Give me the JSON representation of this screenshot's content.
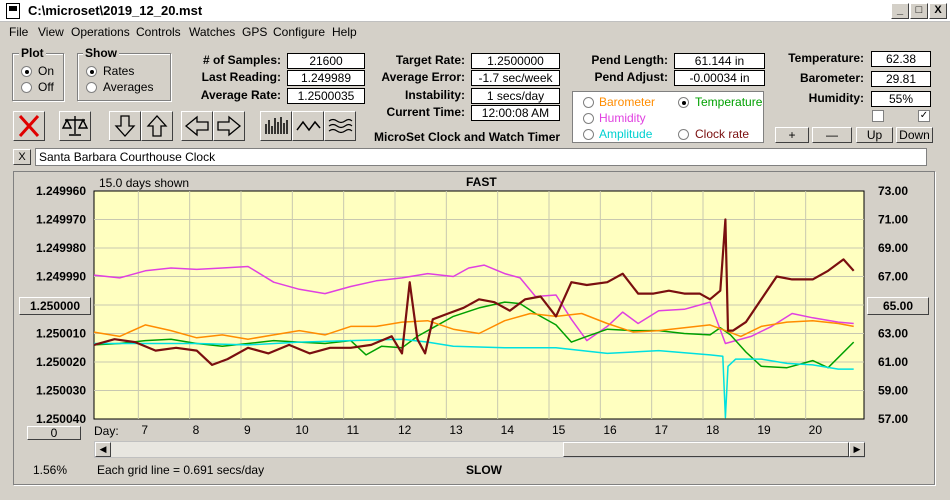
{
  "window": {
    "title": "C:\\microset\\2019_12_20.mst",
    "min": "_",
    "max": "□",
    "close": "X"
  },
  "menu": [
    "File",
    "View",
    "Operations",
    "Controls",
    "Watches",
    "GPS",
    "Configure",
    "Help"
  ],
  "plot_group": {
    "title": "Plot",
    "on": "On",
    "off": "Off"
  },
  "show_group": {
    "title": "Show",
    "rates": "Rates",
    "averages": "Averages"
  },
  "stats": {
    "samples_label": "# of Samples:",
    "samples": "21600",
    "last_label": "Last Reading:",
    "last": "1.249989",
    "avg_label": "Average Rate:",
    "avg": "1.2500035"
  },
  "targets": {
    "target_label": "Target Rate:",
    "target": "1.2500000",
    "error_label": "Average Error:",
    "error": "-1.7 sec/week",
    "instab_label": "Instability:",
    "instab": "1 secs/day",
    "time_label": "Current Time:",
    "time": "12:00:08 AM"
  },
  "app_name": "MicroSet Clock and Watch Timer",
  "pend": {
    "len_label": "Pend Length:",
    "len": "61.144 in",
    "adj_label": "Pend Adjust:",
    "adj": "-0.00034 in"
  },
  "env": {
    "temp_label": "Temperature:",
    "temp": "62.38",
    "baro_label": "Barometer:",
    "baro": "29.81",
    "hum_label": "Humidity:",
    "hum": "55%",
    "check1": "",
    "check2": "✓"
  },
  "series_select": {
    "barometer": "Barometer",
    "temperature": "Temperature",
    "humidity": "Humidity",
    "amplitude": "Amplitude",
    "clock_rate": "Clock rate"
  },
  "adjust_buttons": {
    "plus": "+",
    "minus": "—",
    "up": "Up",
    "down": "Down"
  },
  "clock_name": "Santa Barbara Courthouse Clock",
  "clear_btn": "X",
  "chart_header": {
    "days_shown": "15.0 days shown",
    "fast": "FAST",
    "slow": "SLOW"
  },
  "chart_footer": {
    "grid_note": "Each grid line = 0.691 secs/day",
    "percent": "1.56%",
    "zero_btn": "0",
    "center_left": "1.250000",
    "center_right": "65.00"
  },
  "colors": {
    "rate": "#7a0f0f",
    "temperature": "#00a000",
    "barometer": "#ff8c00",
    "humidity": "#e040e0",
    "amplitude": "#00e0e0",
    "plot_bg": "#ffffc0"
  },
  "chart_data": {
    "type": "line",
    "x_label": "Day:",
    "x_ticks": [
      "7",
      "8",
      "9",
      "10",
      "11",
      "12",
      "13",
      "14",
      "15",
      "16",
      "17",
      "18",
      "19",
      "20"
    ],
    "xlim": [
      6,
      21
    ],
    "y_left_ticks": [
      "1.249960",
      "1.249970",
      "1.249980",
      "1.249990",
      "1.250000",
      "1.250010",
      "1.250020",
      "1.250030",
      "1.250040"
    ],
    "y_left_lim": [
      1.24996,
      1.25004
    ],
    "y_left_inverted": true,
    "y_right_ticks": [
      "73.00",
      "71.00",
      "69.00",
      "67.00",
      "65.00",
      "63.00",
      "61.00",
      "59.00",
      "57.00"
    ],
    "y_right_lim": [
      57,
      73
    ],
    "series": [
      {
        "name": "Humidity",
        "color": "#e040e0",
        "axis": "right",
        "x": [
          6.0,
          6.5,
          7.0,
          7.5,
          8.0,
          8.5,
          9.0,
          9.5,
          10.0,
          10.5,
          11.0,
          11.5,
          12.0,
          12.5,
          13.0,
          13.3,
          13.6,
          14.0,
          14.3,
          14.6,
          15.0,
          15.3,
          15.6,
          16.0,
          16.3,
          16.6,
          17.0,
          17.5,
          18.0,
          18.3,
          18.5,
          18.8,
          19.2,
          19.6,
          20.0,
          20.5,
          20.8
        ],
        "y": [
          67.1,
          66.9,
          67.4,
          67.6,
          67.5,
          67.6,
          67.7,
          66.6,
          66.1,
          65.8,
          66.3,
          66.7,
          66.9,
          67.2,
          67.0,
          67.6,
          67.8,
          67.2,
          66.9,
          65.6,
          65.7,
          64.0,
          62.5,
          63.5,
          64.5,
          63.7,
          64.6,
          64.7,
          65.2,
          62.3,
          62.5,
          62.8,
          63.5,
          64.4,
          64.1,
          63.8,
          63.7
        ]
      },
      {
        "name": "Temperature",
        "color": "#00a000",
        "axis": "right",
        "x": [
          6.0,
          6.5,
          7.0,
          7.5,
          8.0,
          8.5,
          9.0,
          9.5,
          10.0,
          10.5,
          11.0,
          11.3,
          11.6,
          12.0,
          12.3,
          12.6,
          13.0,
          13.5,
          14.0,
          14.3,
          14.6,
          15.0,
          15.3,
          15.6,
          16.0,
          16.5,
          17.0,
          17.5,
          18.0,
          18.2,
          18.4,
          18.7,
          19.0,
          19.5,
          20.0,
          20.3,
          20.8
        ],
        "y": [
          62.2,
          62.3,
          62.5,
          62.6,
          62.3,
          62.1,
          62.3,
          62.5,
          62.4,
          62.3,
          62.5,
          61.5,
          62.1,
          62.0,
          62.8,
          63.4,
          64.2,
          64.8,
          65.2,
          65.1,
          64.4,
          63.6,
          62.4,
          62.8,
          63.3,
          63.2,
          63.2,
          63.0,
          62.9,
          63.4,
          62.9,
          61.7,
          60.7,
          60.6,
          61.1,
          60.6,
          62.4
        ]
      },
      {
        "name": "Barometer",
        "color": "#ff8c00",
        "axis": "right",
        "x": [
          6.0,
          6.5,
          7.0,
          7.5,
          8.0,
          8.5,
          9.0,
          9.5,
          10.0,
          10.5,
          11.0,
          11.5,
          12.0,
          12.5,
          13.0,
          13.5,
          14.0,
          14.5,
          15.0,
          15.5,
          16.0,
          16.5,
          17.0,
          17.5,
          18.0,
          18.3,
          18.6,
          19.0,
          19.5,
          20.0,
          20.5,
          20.8
        ],
        "y": [
          63.1,
          62.8,
          63.6,
          63.2,
          62.7,
          62.9,
          62.6,
          62.9,
          63.2,
          62.9,
          63.5,
          63.5,
          63.8,
          63.9,
          63.3,
          63.0,
          63.9,
          64.4,
          64.2,
          64.4,
          63.7,
          63.1,
          63.2,
          63.4,
          63.6,
          63.2,
          62.8,
          63.5,
          63.8,
          63.9,
          63.7,
          63.5
        ]
      },
      {
        "name": "Amplitude",
        "color": "#00e0e0",
        "axis": "right",
        "x": [
          6.0,
          7.0,
          8.0,
          9.0,
          10.0,
          11.0,
          12.0,
          12.5,
          13.0,
          14.0,
          15.0,
          16.0,
          17.0,
          18.0,
          18.25,
          18.3,
          18.35,
          18.5,
          19.0,
          19.5,
          20.0,
          20.5,
          20.8
        ],
        "y": [
          62.3,
          62.3,
          62.3,
          62.2,
          62.4,
          62.5,
          62.6,
          62.4,
          62.1,
          62.0,
          62.0,
          61.6,
          61.8,
          61.5,
          61.4,
          57.1,
          60.7,
          61.2,
          61.2,
          60.9,
          60.8,
          60.5,
          60.5
        ]
      },
      {
        "name": "Clock rate",
        "color": "#7a0f0f",
        "axis": "left",
        "x": [
          6.0,
          6.4,
          6.8,
          7.2,
          7.6,
          8.0,
          8.3,
          8.6,
          9.0,
          9.4,
          9.8,
          10.2,
          10.6,
          11.0,
          11.4,
          11.8,
          12.0,
          12.15,
          12.3,
          12.45,
          12.6,
          12.9,
          13.2,
          13.5,
          13.8,
          14.1,
          14.4,
          14.7,
          15.0,
          15.3,
          15.6,
          16.0,
          16.3,
          16.6,
          16.9,
          17.2,
          17.5,
          17.8,
          18.0,
          18.2,
          18.3,
          18.35,
          18.45,
          18.7,
          19.0,
          19.3,
          19.6,
          20.0,
          20.3,
          20.6,
          20.8
        ],
        "y": [
          1.250014,
          1.250012,
          1.250013,
          1.250016,
          1.250015,
          1.250016,
          1.250021,
          1.250019,
          1.250015,
          1.250017,
          1.250014,
          1.250017,
          1.250015,
          1.250015,
          1.250014,
          1.250011,
          1.250017,
          1.249992,
          1.250012,
          1.250017,
          1.250005,
          1.250003,
          1.250001,
          1.249998,
          1.249999,
          1.250002,
          1.249998,
          1.249997,
          1.250004,
          1.249992,
          1.249993,
          1.249992,
          1.249989,
          1.249996,
          1.249996,
          1.249995,
          1.249996,
          1.249996,
          1.249998,
          1.249995,
          1.24997,
          1.250009,
          1.250009,
          1.250006,
          1.249998,
          1.24999,
          1.249991,
          1.249991,
          1.249988,
          1.249984,
          1.249988
        ]
      }
    ]
  }
}
